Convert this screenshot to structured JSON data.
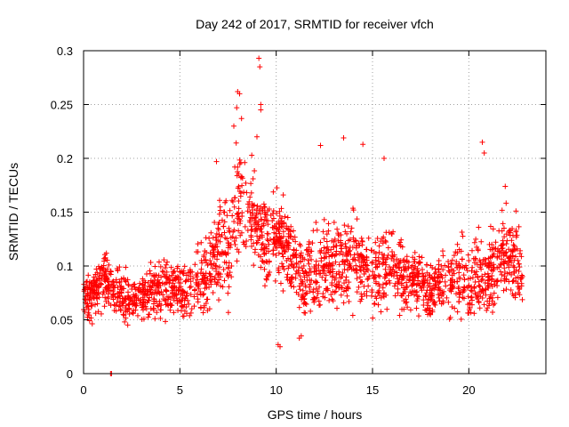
{
  "chart_data": {
    "type": "scatter",
    "title": "Day 242 of 2017, SRMTID for receiver vfch",
    "xlabel": "GPS time / hours",
    "ylabel": "SRMTID / TECUs",
    "xlim": [
      0,
      24
    ],
    "ylim": [
      0,
      0.3
    ],
    "xticks": [
      0,
      5,
      10,
      15,
      20
    ],
    "xtick_labels": [
      "0",
      "5",
      "10",
      "15",
      "20"
    ],
    "yticks": [
      0,
      0.05,
      0.1,
      0.15,
      0.2,
      0.25,
      0.3
    ],
    "ytick_labels": [
      "0",
      "0.05",
      "0.1",
      "0.15",
      "0.2",
      "0.25",
      "0.3"
    ],
    "grid": true,
    "marker": "+",
    "series": [
      {
        "name": "SRMTID",
        "color": "#ff0000",
        "trend": {
          "hours": [
            0,
            0.5,
            1,
            1.5,
            2,
            2.5,
            3,
            3.5,
            4,
            4.5,
            5,
            5.5,
            6,
            6.5,
            7,
            7.5,
            8,
            8.5,
            9,
            9.5,
            10,
            10.5,
            11,
            11.5,
            12,
            12.5,
            13,
            13.5,
            14,
            14.5,
            15,
            15.5,
            16,
            16.5,
            17,
            17.5,
            18,
            18.5,
            19,
            19.5,
            20,
            20.5,
            21,
            21.5,
            22,
            22.5,
            22.8
          ],
          "center": [
            0.07,
            0.075,
            0.09,
            0.08,
            0.07,
            0.07,
            0.07,
            0.075,
            0.08,
            0.08,
            0.075,
            0.08,
            0.085,
            0.09,
            0.12,
            0.11,
            0.16,
            0.15,
            0.14,
            0.12,
            0.13,
            0.12,
            0.1,
            0.085,
            0.09,
            0.1,
            0.1,
            0.1,
            0.11,
            0.1,
            0.095,
            0.1,
            0.1,
            0.09,
            0.09,
            0.085,
            0.08,
            0.085,
            0.085,
            0.09,
            0.085,
            0.09,
            0.09,
            0.1,
            0.12,
            0.1,
            0.09
          ],
          "spread": [
            0.02,
            0.02,
            0.025,
            0.02,
            0.02,
            0.02,
            0.02,
            0.02,
            0.025,
            0.02,
            0.02,
            0.025,
            0.03,
            0.03,
            0.04,
            0.035,
            0.05,
            0.04,
            0.04,
            0.035,
            0.035,
            0.035,
            0.03,
            0.03,
            0.035,
            0.035,
            0.035,
            0.035,
            0.035,
            0.03,
            0.03,
            0.035,
            0.03,
            0.03,
            0.03,
            0.025,
            0.025,
            0.025,
            0.03,
            0.03,
            0.03,
            0.035,
            0.035,
            0.035,
            0.04,
            0.035,
            0.03
          ]
        },
        "highlight_points": [
          [
            9.1,
            0.293
          ],
          [
            9.15,
            0.285
          ],
          [
            8.0,
            0.262
          ],
          [
            8.1,
            0.26
          ],
          [
            9.2,
            0.25
          ],
          [
            9.2,
            0.245
          ],
          [
            7.95,
            0.247
          ],
          [
            8.2,
            0.237
          ],
          [
            7.8,
            0.23
          ],
          [
            9.0,
            0.22
          ],
          [
            13.5,
            0.219
          ],
          [
            14.5,
            0.213
          ],
          [
            12.3,
            0.212
          ],
          [
            20.7,
            0.215
          ],
          [
            20.8,
            0.205
          ],
          [
            15.6,
            0.2
          ],
          [
            6.9,
            0.197
          ],
          [
            11.2,
            0.033
          ],
          [
            11.3,
            0.035
          ],
          [
            10.1,
            0.027
          ],
          [
            10.2,
            0.025
          ],
          [
            1.4,
            0.0
          ],
          [
            1.45,
            0.0
          ]
        ]
      }
    ]
  }
}
